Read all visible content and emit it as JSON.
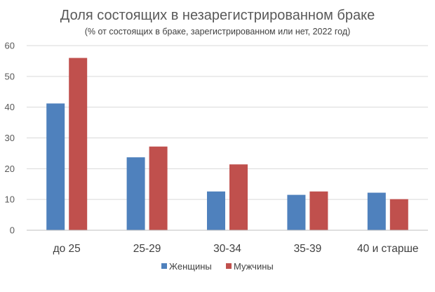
{
  "chart_data": {
    "type": "bar",
    "title": "Доля состоящих в незарегистрированном браке",
    "subtitle": "(% от состоящих в браке, зарегистрированном или нет, 2022 год)",
    "categories": [
      "до 25",
      "25-29",
      "30-34",
      "35-39",
      "40 и старше"
    ],
    "series": [
      {
        "name": "Женщины",
        "color": "#4f81bd",
        "values": [
          41.2,
          23.7,
          12.6,
          11.5,
          12.2
        ]
      },
      {
        "name": "Мужчины",
        "color": "#c0504d",
        "values": [
          56.0,
          27.2,
          21.4,
          12.6,
          10.1
        ]
      }
    ],
    "ylim": [
      0,
      60
    ],
    "yticks": [
      0,
      10,
      20,
      30,
      40,
      50,
      60
    ],
    "grid": true,
    "legend_position": "bottom"
  }
}
